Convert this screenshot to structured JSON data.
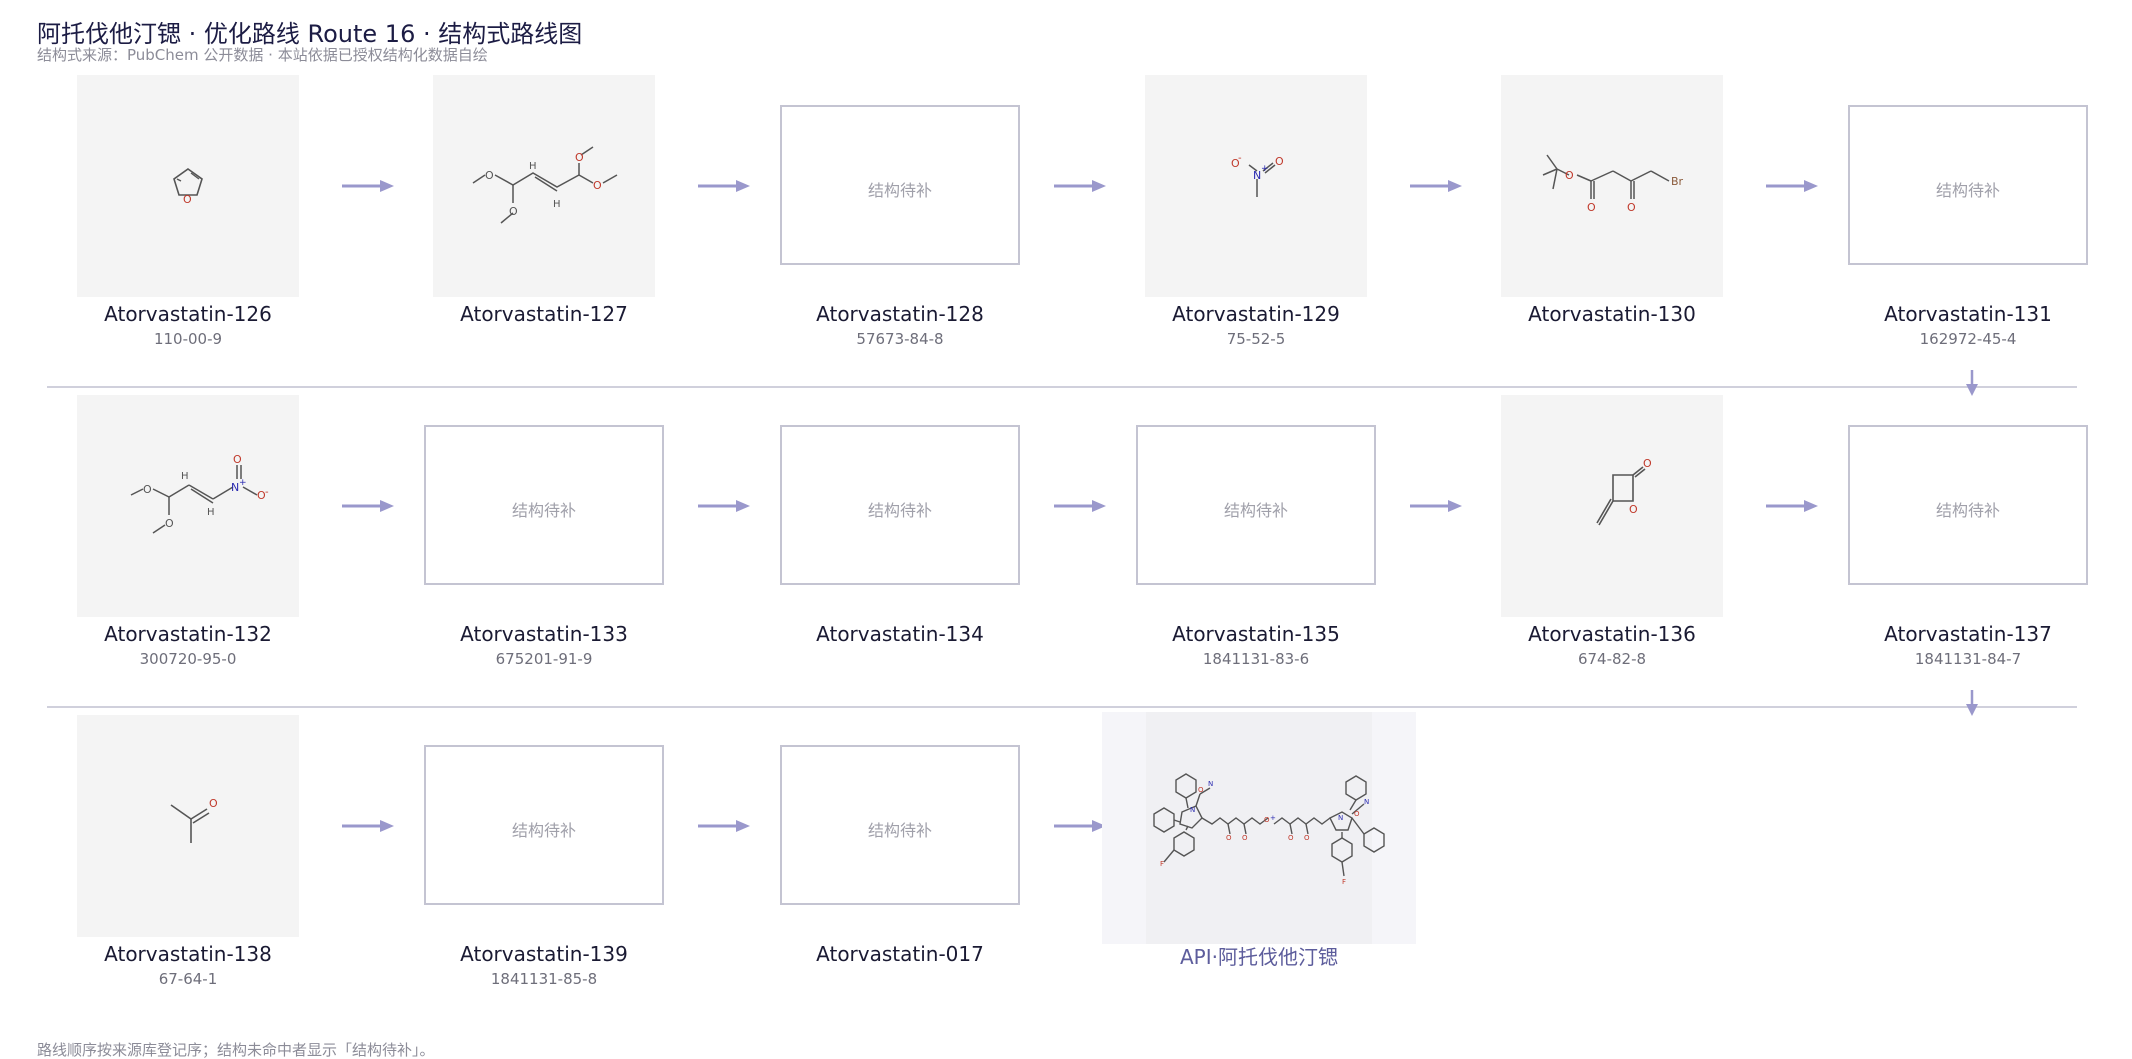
{
  "header": {
    "title": "阿托伐他汀锶 · 优化路线 Route 16 · 结构式路线图",
    "subtitle": "结构式来源：PubChem 公开数据 · 本站依据已授权结构化数据自绘"
  },
  "placeholder_label": "结构待补",
  "nodes": [
    {
      "name": "Atorvastatin-126",
      "cas": "110-00-9",
      "structure": "furan"
    },
    {
      "name": "Atorvastatin-127",
      "cas": "",
      "structure": "tetramethoxybutene"
    },
    {
      "name": "Atorvastatin-128",
      "cas": "57673-84-8",
      "structure": "placeholder"
    },
    {
      "name": "Atorvastatin-129",
      "cas": "75-52-5",
      "structure": "nitromethane"
    },
    {
      "name": "Atorvastatin-130",
      "cas": "",
      "structure": "tbutyl-bromoacetoacetate"
    },
    {
      "name": "Atorvastatin-131",
      "cas": "162972-45-4",
      "structure": "placeholder"
    },
    {
      "name": "Atorvastatin-132",
      "cas": "300720-95-0",
      "structure": "dimethoxy-nitropropene"
    },
    {
      "name": "Atorvastatin-133",
      "cas": "675201-91-9",
      "structure": "placeholder"
    },
    {
      "name": "Atorvastatin-134",
      "cas": "",
      "structure": "placeholder"
    },
    {
      "name": "Atorvastatin-135",
      "cas": "1841131-83-6",
      "structure": "placeholder"
    },
    {
      "name": "Atorvastatin-136",
      "cas": "674-82-8",
      "structure": "diketene"
    },
    {
      "name": "Atorvastatin-137",
      "cas": "1841131-84-7",
      "structure": "placeholder"
    },
    {
      "name": "Atorvastatin-138",
      "cas": "67-64-1",
      "structure": "acetone"
    },
    {
      "name": "Atorvastatin-139",
      "cas": "1841131-85-8",
      "structure": "placeholder"
    },
    {
      "name": "Atorvastatin-017",
      "cas": "",
      "structure": "placeholder"
    }
  ],
  "api": {
    "label": "API·阿托伐他汀锶",
    "structure": "atorvastatin-strontium"
  },
  "atom_labels": {
    "O": "O",
    "H": "H",
    "N": "N",
    "Br": "Br",
    "F": "F",
    "plus": "+",
    "minus": "-"
  },
  "colors": {
    "accent": "#9a98cc",
    "title": "#1c1c44",
    "oxygen": "#c0392b",
    "nitrogen": "#2a2ab0",
    "bond": "#555555",
    "panel": "#f4f4f4"
  },
  "footer": "路线顺序按来源库登记序；结构未命中者显示「结构待补」。"
}
